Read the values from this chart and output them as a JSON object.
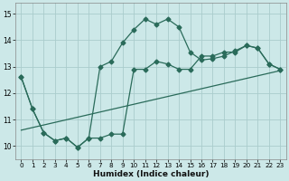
{
  "xlabel": "Humidex (Indice chaleur)",
  "ylabel": "",
  "bg_color": "#cce8e8",
  "grid_color": "#aacccc",
  "line_color": "#2a6b5a",
  "xlim": [
    -0.5,
    23.5
  ],
  "ylim": [
    9.5,
    15.4
  ],
  "xticks": [
    0,
    1,
    2,
    3,
    4,
    5,
    6,
    7,
    8,
    9,
    10,
    11,
    12,
    13,
    14,
    15,
    16,
    17,
    18,
    19,
    20,
    21,
    22,
    23
  ],
  "yticks": [
    10,
    11,
    12,
    13,
    14,
    15
  ],
  "line1_x": [
    0,
    1,
    2,
    3,
    4,
    5,
    6,
    7,
    8,
    9,
    10,
    11,
    12,
    13,
    14,
    15,
    16,
    17,
    18,
    19,
    20,
    21,
    22,
    23
  ],
  "line1_y": [
    12.6,
    11.4,
    10.5,
    10.2,
    10.3,
    9.95,
    10.3,
    10.3,
    10.45,
    10.45,
    12.9,
    12.9,
    13.2,
    13.1,
    12.9,
    12.9,
    13.4,
    13.4,
    13.55,
    13.55,
    13.8,
    13.7,
    13.1,
    12.9
  ],
  "line2_x": [
    0,
    1,
    2,
    3,
    4,
    5,
    6,
    7,
    8,
    9,
    10,
    11,
    12,
    13,
    14,
    15,
    16,
    17,
    18,
    19,
    20,
    21,
    22,
    23
  ],
  "line2_y": [
    12.6,
    11.4,
    10.5,
    10.2,
    10.3,
    9.95,
    10.3,
    13.0,
    13.2,
    13.9,
    14.4,
    14.8,
    14.6,
    14.8,
    14.5,
    13.55,
    13.25,
    13.3,
    13.4,
    13.6,
    13.8,
    13.7,
    13.1,
    12.9
  ],
  "line3_x": [
    0,
    23
  ],
  "line3_y": [
    10.6,
    12.85
  ],
  "marker": "D",
  "markersize": 2.5,
  "linewidth": 0.9
}
